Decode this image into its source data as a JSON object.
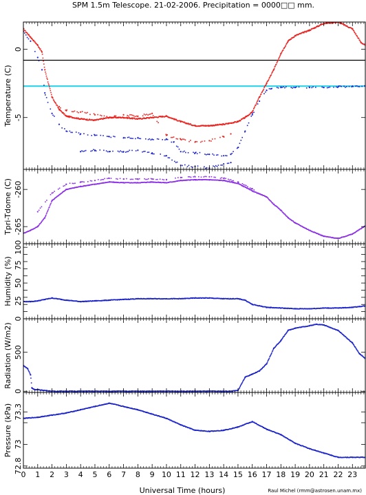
{
  "title": "SPM 1.5m Telescope. 21-02-2006. Precipitation = 0000□□ mm.",
  "xlabel": "Universal Time (hours)",
  "credit": "Raul Michel (rmm@astrosen.unam.mx)",
  "colors": {
    "red": "#e8211d",
    "blue": "#1a22c8",
    "purple": "#8a2ee6",
    "cyan": "#35d6ea",
    "black": "#000000"
  },
  "chart_data": [
    {
      "type": "line",
      "ylabel": "Temperature (C)",
      "xlim": [
        0,
        23.9
      ],
      "ylim": [
        -8.8,
        2.0
      ],
      "x_ticks": [
        0,
        1,
        2,
        3,
        4,
        5,
        6,
        7,
        8,
        9,
        10,
        11,
        12,
        13,
        14,
        15,
        16,
        17,
        18,
        19,
        20,
        21,
        22,
        23
      ],
      "y_ticks": [
        0,
        -5
      ],
      "reference_lines": [
        {
          "name": "black line",
          "value": -0.8,
          "color": "#000000"
        },
        {
          "name": "cyan line",
          "value": -2.7,
          "color": "#35d6ea"
        }
      ],
      "series": [
        {
          "color": "#e8211d",
          "x": [
            0,
            0.5,
            1,
            1.3,
            1.5,
            2,
            2.5,
            3,
            4,
            5,
            6,
            7,
            8,
            9,
            10,
            11,
            12,
            13,
            14,
            15,
            15.5,
            16,
            16.5,
            17,
            17.5,
            18,
            18.5,
            19,
            20,
            21,
            22,
            23,
            23.6,
            23.9
          ],
          "y": [
            1.5,
            0.9,
            0.3,
            -0.2,
            -1.5,
            -3.5,
            -4.4,
            -4.9,
            -5.1,
            -5.2,
            -5.0,
            -5.0,
            -5.1,
            -5.0,
            -4.9,
            -5.3,
            -5.6,
            -5.6,
            -5.5,
            -5.3,
            -5.0,
            -4.6,
            -3.5,
            -2.5,
            -1.5,
            -0.3,
            0.6,
            1.0,
            1.4,
            1.9,
            2.0,
            1.5,
            0.5,
            0.3
          ]
        },
        {
          "color": "#1a22c8",
          "x": [
            0,
            0.5,
            1,
            1.3,
            1.5,
            2,
            2.5,
            3,
            4,
            5,
            6,
            7,
            8,
            9,
            10,
            10.5,
            11,
            12,
            13,
            14,
            14.5,
            15,
            15.5,
            16,
            16.5,
            17,
            17.3,
            18,
            19,
            20,
            21,
            22,
            23,
            23.9
          ],
          "y": [
            1.3,
            0.6,
            -0.6,
            -1.5,
            -3.2,
            -4.7,
            -5.5,
            -6.0,
            -6.2,
            -6.3,
            -6.4,
            -6.5,
            -6.5,
            -6.6,
            -6.6,
            -6.8,
            -7.5,
            -7.6,
            -7.7,
            -7.8,
            -7.7,
            -7.2,
            -6.0,
            -4.8,
            -3.8,
            -3.0,
            -2.9,
            -2.8,
            -2.8,
            -2.8,
            -2.8,
            -2.75,
            -2.7,
            -2.7
          ]
        },
        {
          "color": "#e8211d",
          "x": [
            2.5,
            3,
            4,
            5,
            6,
            7,
            8,
            9,
            10,
            11,
            12,
            13,
            14,
            14.5
          ],
          "y": [
            -4.2,
            -4.5,
            -4.6,
            -4.8,
            -5.0,
            -4.8,
            -4.9,
            -4.7,
            -6.3,
            -6.6,
            -6.8,
            -6.7,
            -6.4,
            -6.2
          ]
        },
        {
          "color": "#1a22c8",
          "x": [
            4,
            5,
            6,
            7,
            8,
            9,
            10,
            11,
            12,
            13,
            14,
            14.5
          ],
          "y": [
            -7.5,
            -7.4,
            -7.5,
            -7.5,
            -7.4,
            -7.6,
            -7.8,
            -8.5,
            -8.6,
            -8.7,
            -8.4,
            -8.3
          ]
        }
      ]
    },
    {
      "type": "line",
      "ylabel": "Tpri-Tdome (C)",
      "xlim": [
        0,
        23.9
      ],
      "ylim": [
        -267.3,
        -257.3
      ],
      "y_ticks": [
        -260,
        -265
      ],
      "series": [
        {
          "color": "#8a2ee6",
          "x": [
            0,
            0.5,
            1,
            1.5,
            2,
            3,
            4,
            5,
            6,
            7,
            8,
            9,
            10,
            11,
            12,
            13,
            14,
            15,
            16,
            17,
            17.5,
            18,
            18.5,
            19,
            20,
            21,
            22,
            23,
            23.9
          ],
          "y": [
            -265.9,
            -265.5,
            -265.0,
            -263.8,
            -261.5,
            -260.0,
            -259.6,
            -259.3,
            -259.0,
            -259.1,
            -259.1,
            -259.0,
            -259.1,
            -258.8,
            -258.7,
            -258.7,
            -258.8,
            -259.2,
            -260.2,
            -261.0,
            -262.0,
            -262.8,
            -263.8,
            -264.5,
            -265.5,
            -266.3,
            -266.6,
            -266.0,
            -264.9
          ]
        },
        {
          "color": "#8a2ee6",
          "x": [
            1,
            2,
            3,
            4,
            5,
            6,
            7,
            8,
            9,
            10,
            11,
            12,
            13,
            14,
            15,
            16,
            16.5
          ],
          "y": [
            -263.0,
            -260.5,
            -259.3,
            -259.0,
            -258.8,
            -258.5,
            -258.6,
            -258.6,
            -258.6,
            -258.7,
            -258.4,
            -258.3,
            -258.3,
            -258.5,
            -259.0,
            -259.9,
            -260.6
          ]
        }
      ]
    },
    {
      "type": "line",
      "ylabel": "Humidity (%)",
      "xlim": [
        0,
        23.9
      ],
      "ylim": [
        0,
        105
      ],
      "y_ticks": [
        0,
        10,
        20,
        30,
        40,
        50,
        60,
        70,
        80,
        90,
        100
      ],
      "y_tick_labels": [
        0,
        25,
        50,
        75,
        100
      ],
      "series": [
        {
          "color": "#1a22c8",
          "x": [
            0,
            0.5,
            1,
            1.5,
            2,
            3,
            4,
            5,
            6,
            7,
            8,
            9,
            10,
            11,
            12,
            13,
            14,
            15,
            15.5,
            16,
            17,
            18,
            19,
            20,
            21,
            22,
            23,
            23.9
          ],
          "y": [
            24,
            24,
            25,
            27,
            29,
            26,
            24,
            25,
            26,
            27,
            28,
            28,
            28,
            28,
            29,
            29,
            28,
            28,
            26,
            20,
            16,
            15,
            14,
            14,
            15,
            15,
            16,
            18
          ]
        }
      ]
    },
    {
      "type": "line",
      "ylabel": "Radiation (W/m2)",
      "xlim": [
        0,
        23.9
      ],
      "ylim": [
        -15,
        930
      ],
      "y_ticks": [
        0,
        500
      ],
      "series": [
        {
          "color": "#1a22c8",
          "x": [
            0,
            0.3,
            0.5,
            0.6,
            0.8,
            1,
            2,
            3,
            4,
            5,
            6,
            7,
            8,
            9,
            10,
            11,
            12,
            13,
            14,
            14.5,
            15,
            15.5,
            16,
            16.5,
            17,
            17.5,
            18,
            18.5,
            19,
            20,
            20.5,
            21,
            22,
            23,
            23.5,
            23.9
          ],
          "y": [
            330,
            290,
            210,
            40,
            20,
            20,
            0,
            0,
            0,
            0,
            0,
            0,
            0,
            0,
            0,
            0,
            0,
            0,
            0,
            0,
            10,
            180,
            220,
            260,
            350,
            550,
            650,
            780,
            810,
            840,
            860,
            850,
            780,
            620,
            480,
            420
          ]
        }
      ]
    },
    {
      "type": "line",
      "ylabel": "Pressure (kPa)",
      "xlim": [
        0,
        23.9
      ],
      "ylim": [
        72.78,
        73.48
      ],
      "y_ticks": [
        72.8,
        73,
        73.2,
        73.3
      ],
      "y_tick_labels": [
        72.8,
        73,
        73.3
      ],
      "series": [
        {
          "color": "#1a22c8",
          "x": [
            0,
            1,
            2,
            3,
            4,
            5,
            6,
            7,
            8,
            9,
            10,
            11,
            12,
            13,
            14,
            15,
            16,
            17,
            18,
            19,
            20,
            21,
            22,
            23,
            23.9
          ],
          "y": [
            73.24,
            73.25,
            73.27,
            73.29,
            73.32,
            73.35,
            73.38,
            73.35,
            73.32,
            73.28,
            73.24,
            73.18,
            73.13,
            73.12,
            73.13,
            73.16,
            73.21,
            73.14,
            73.09,
            73.01,
            72.96,
            72.92,
            72.88,
            72.88,
            72.88
          ]
        }
      ]
    }
  ]
}
